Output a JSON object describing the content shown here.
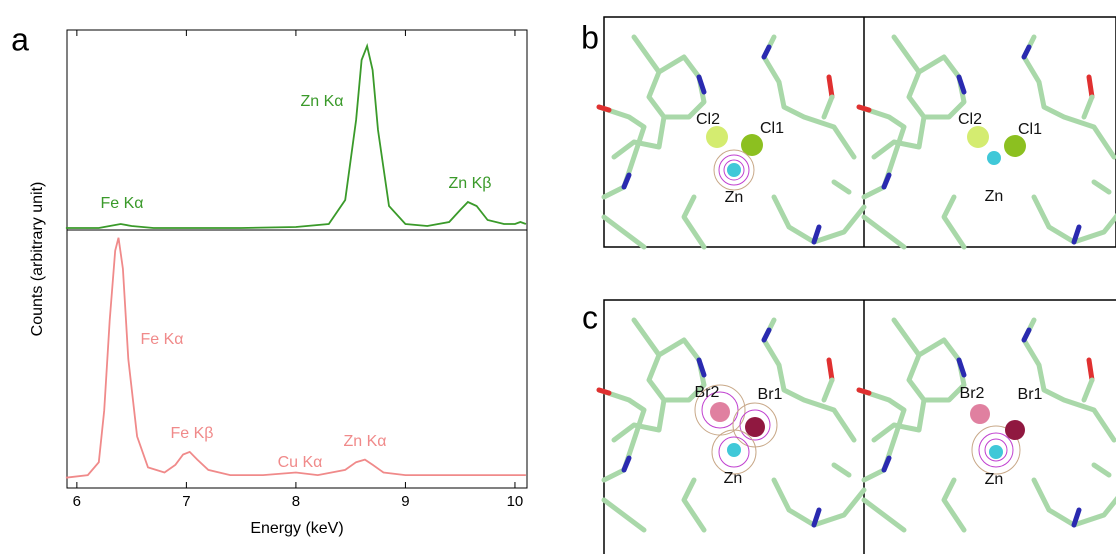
{
  "panel_labels": [
    "a",
    "b",
    "c"
  ],
  "chart_data": [
    {
      "type": "line",
      "ylabel": "Counts (arbitrary unit)",
      "color": "#3a9a2a",
      "xlim": [
        5.91,
        10.11
      ],
      "ylim": [
        0,
        1
      ],
      "x": [
        5.9,
        6.0,
        6.2,
        6.3,
        6.4,
        6.5,
        6.7,
        7.0,
        7.5,
        8.0,
        8.3,
        8.45,
        8.55,
        8.6,
        8.65,
        8.7,
        8.75,
        8.85,
        9.0,
        9.2,
        9.4,
        9.5,
        9.57,
        9.65,
        9.75,
        9.9,
        10.0,
        10.05,
        10.1
      ],
      "values": [
        0.01,
        0.01,
        0.01,
        0.02,
        0.03,
        0.02,
        0.01,
        0.01,
        0.01,
        0.015,
        0.03,
        0.15,
        0.55,
        0.85,
        0.92,
        0.8,
        0.5,
        0.12,
        0.03,
        0.02,
        0.04,
        0.1,
        0.14,
        0.12,
        0.05,
        0.03,
        0.03,
        0.04,
        0.03
      ],
      "annotations": [
        "Fe Kα",
        "Zn Kα",
        "Zn Kβ"
      ]
    },
    {
      "type": "line",
      "xlabel": "Energy (keV)",
      "color": "#f08a8a",
      "xlim": [
        5.91,
        10.11
      ],
      "ylim": [
        0,
        1
      ],
      "xticks": [
        6,
        7,
        8,
        9,
        10
      ],
      "x": [
        5.9,
        6.1,
        6.2,
        6.25,
        6.3,
        6.35,
        6.38,
        6.42,
        6.47,
        6.55,
        6.65,
        6.8,
        6.9,
        6.97,
        7.03,
        7.1,
        7.2,
        7.4,
        7.7,
        8.0,
        8.2,
        8.45,
        8.55,
        8.63,
        8.7,
        8.8,
        9.0,
        9.5,
        10.1
      ],
      "values": [
        0.04,
        0.05,
        0.1,
        0.3,
        0.65,
        0.92,
        0.97,
        0.85,
        0.5,
        0.2,
        0.08,
        0.06,
        0.09,
        0.13,
        0.14,
        0.11,
        0.07,
        0.05,
        0.05,
        0.06,
        0.05,
        0.07,
        0.1,
        0.11,
        0.09,
        0.06,
        0.05,
        0.05,
        0.05
      ],
      "annotations": [
        "Fe Kα",
        "Fe Kβ",
        "Cu Kα",
        "Zn Kα"
      ]
    }
  ],
  "structures": {
    "b": {
      "left": [
        "Cl2",
        "Cl1",
        "Zn"
      ],
      "right": [
        "Cl2",
        "Cl1",
        "Zn"
      ]
    },
    "c": {
      "left": [
        "Br2",
        "Br1",
        "Zn"
      ],
      "right": [
        "Br2",
        "Br1",
        "Zn"
      ]
    }
  }
}
